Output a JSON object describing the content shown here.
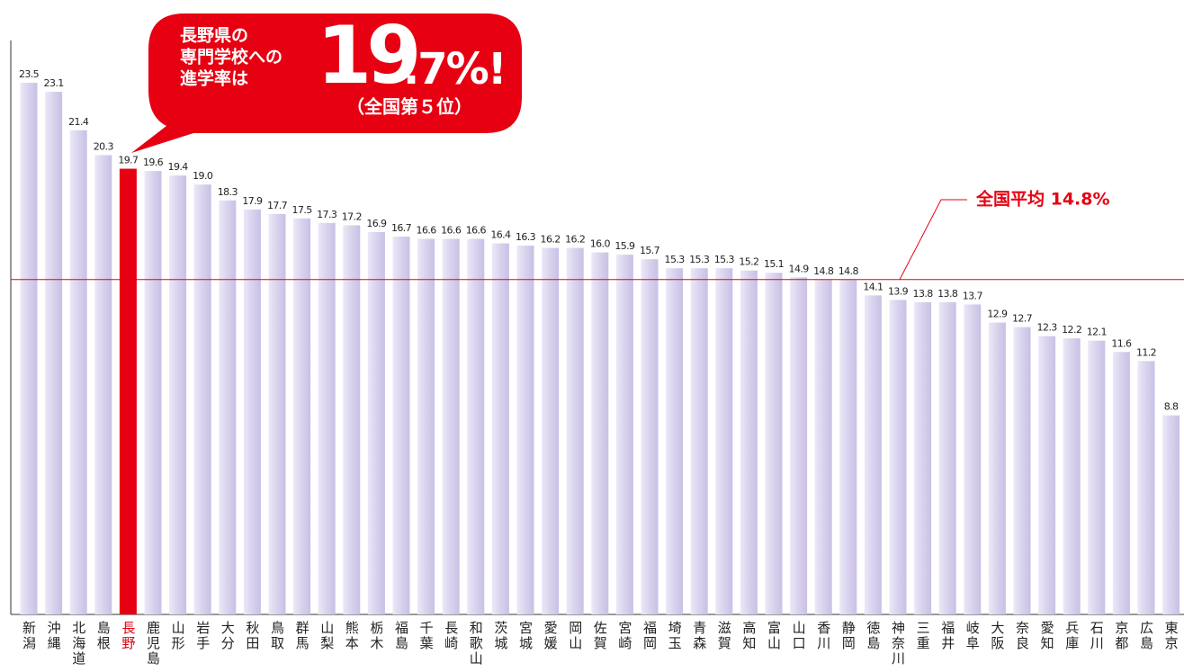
{
  "chart_data": {
    "type": "bar",
    "callout": {
      "lines": [
        "長野県の",
        "専門学校への",
        "進学率は"
      ],
      "big": "19",
      "small": ".7%!",
      "rank": "（全国第５位）"
    },
    "categories": [
      "新潟",
      "沖縄",
      "北海道",
      "島根",
      "長野",
      "鹿児島",
      "山形",
      "岩手",
      "大分",
      "秋田",
      "鳥取",
      "群馬",
      "山梨",
      "熊本",
      "栃木",
      "福島",
      "千葉",
      "長崎",
      "和歌山",
      "茨城",
      "宮城",
      "愛媛",
      "岡山",
      "佐賀",
      "宮崎",
      "福岡",
      "埼玉",
      "青森",
      "滋賀",
      "高知",
      "富山",
      "山口",
      "香川",
      "静岡",
      "徳島",
      "神奈川",
      "三重",
      "福井",
      "岐阜",
      "大阪",
      "奈良",
      "愛知",
      "兵庫",
      "石川",
      "京都",
      "広島",
      "東京"
    ],
    "values": [
      23.5,
      23.1,
      21.4,
      20.3,
      19.7,
      19.6,
      19.4,
      19.0,
      18.3,
      17.9,
      17.7,
      17.5,
      17.3,
      17.2,
      16.9,
      16.7,
      16.6,
      16.6,
      16.6,
      16.4,
      16.3,
      16.2,
      16.2,
      16.0,
      15.9,
      15.7,
      15.3,
      15.3,
      15.3,
      15.2,
      15.1,
      14.9,
      14.8,
      14.8,
      14.1,
      13.9,
      13.8,
      13.8,
      13.7,
      12.9,
      12.7,
      12.3,
      12.2,
      12.1,
      11.6,
      11.2,
      8.8
    ],
    "value_labels": [
      "23.5",
      "23.1",
      "21.4",
      "20.3",
      "19.7",
      "19.6",
      "19.4",
      "19.0",
      "18.3",
      "17.9",
      "17.7",
      "17.5",
      "17.3",
      "17.2",
      "16.9",
      "16.7",
      "16.6",
      "16.6",
      "16.6",
      "16.4",
      "16.3",
      "16.2",
      "16.2",
      "16.0",
      "15.9",
      "15.7",
      "15.3",
      "15.3",
      "15.3",
      "15.2",
      "15.1",
      "14.9",
      "14.8",
      "14.8",
      "14.1",
      "13.9",
      "13.8",
      "13.8",
      "13.7",
      "12.9",
      "12.7",
      "12.3",
      "12.2",
      "12.1",
      "11.6",
      "11.2",
      "8.8"
    ],
    "color": "#d9d2ee",
    "highlight_index": 4,
    "highlight_color": "#e60012",
    "average": {
      "value": 14.8,
      "label": "全国平均 14.8%"
    },
    "average_color": "#e60012"
  }
}
